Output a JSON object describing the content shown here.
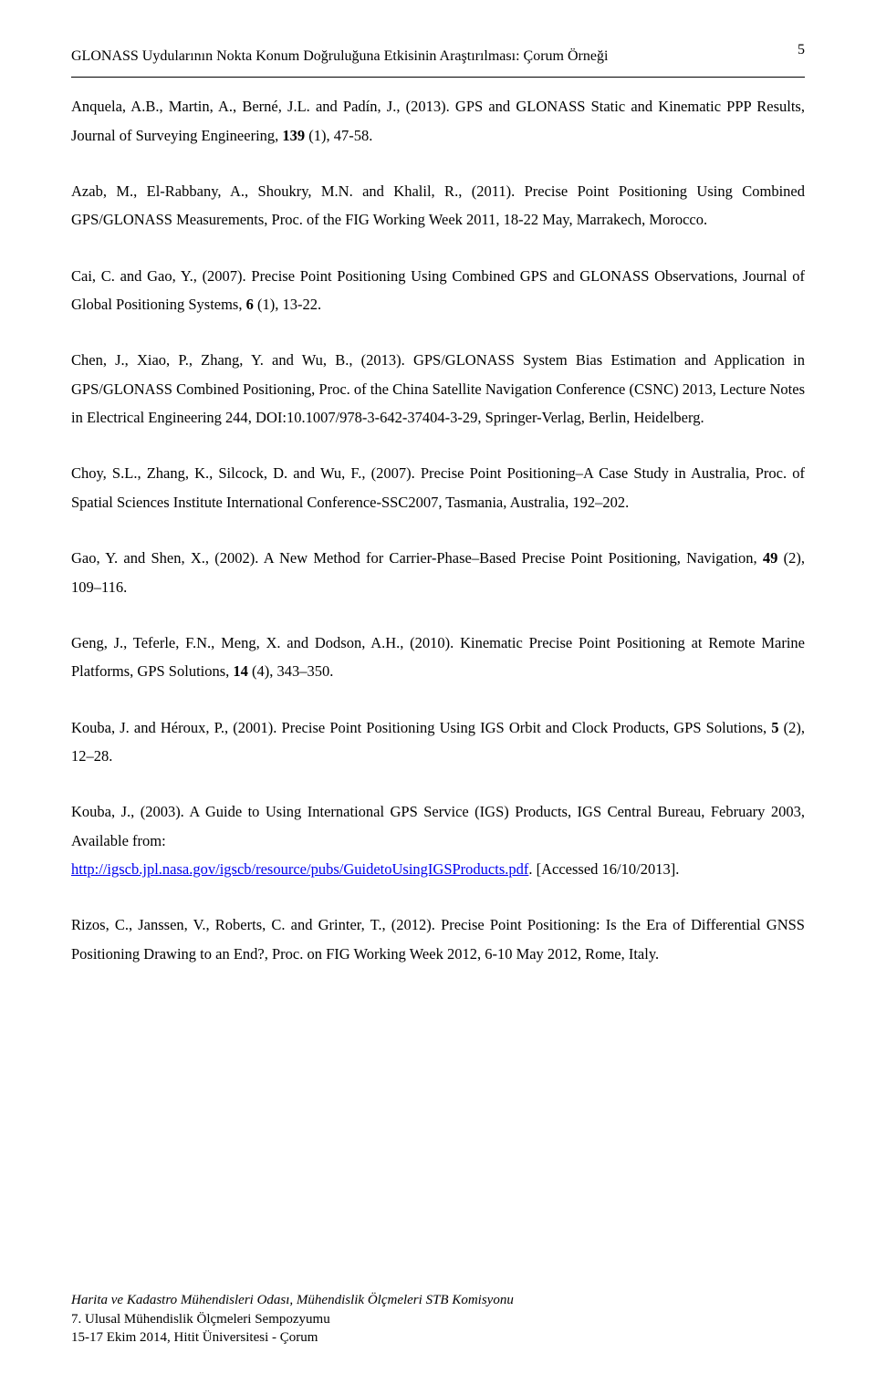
{
  "header": {
    "title": "GLONASS Uydularının Nokta Konum Doğruluğuna Etkisinin Araştırılması: Çorum Örneği",
    "page_number": "5"
  },
  "references": [
    {
      "authors": "Anquela, A.B., Martin, A., Berné, J.L. and Padín, J., (2013). ",
      "body": "GPS and GLONASS Static and Kinematic PPP Results, Journal of Surveying Engineering, ",
      "bold": "139",
      "tail": " (1), 47-58."
    },
    {
      "authors": "Azab, M., El-Rabbany, A., Shoukry, M.N. and Khalil, R., (2011). ",
      "body": "Precise Point Positioning Using Combined GPS/GLONASS Measurements, Proc. of the FIG Working Week 2011, 18-22 May, Marrakech, Morocco.",
      "bold": "",
      "tail": ""
    },
    {
      "authors": "Cai, C. and Gao, Y., (2007). ",
      "body": "Precise Point Positioning Using Combined GPS and GLONASS Observations, Journal of Global Positioning Systems, ",
      "bold": "6",
      "tail": " (1), 13-22."
    },
    {
      "authors": "Chen, J., Xiao, P., Zhang, Y. and Wu, B., (2013). ",
      "body": "GPS/GLONASS System Bias Estimation and Application in GPS/GLONASS Combined Positioning, Proc. of the China Satellite Navigation Conference (CSNC) 2013, Lecture Notes in Electrical Engineering 244, DOI:10.1007/978-3-642-37404-3-29, Springer-Verlag, Berlin, Heidelberg.",
      "bold": "",
      "tail": ""
    },
    {
      "authors": "Choy, S.L., Zhang, K., Silcock, D. and Wu, F., (2007). ",
      "body": "Precise Point Positioning–A Case Study in Australia, Proc. of Spatial Sciences Institute International Conference-SSC2007, Tasmania, Australia, 192–202.",
      "bold": "",
      "tail": ""
    },
    {
      "authors": "Gao, Y. and Shen, X., (2002). ",
      "body": "A New Method for Carrier-Phase–Based Precise Point Positioning, Navigation, ",
      "bold": "49",
      "tail": " (2), 109–116."
    },
    {
      "authors": "Geng, J., Teferle, F.N., Meng, X. and Dodson, A.H., (2010). ",
      "body": "Kinematic Precise Point Positioning at Remote Marine Platforms, GPS Solutions, ",
      "bold": "14",
      "tail": " (4), 343–350."
    },
    {
      "authors": "Kouba, J. and Héroux, P., (2001). ",
      "body": "Precise Point Positioning Using IGS Orbit and Clock Products, GPS Solutions, ",
      "bold": "5",
      "tail": " (2), 12–28."
    },
    {
      "authors": "Kouba, J., (2003). ",
      "body_pre_link": "A Guide to Using International GPS Service (IGS) Products, IGS Central Bureau, February 2003, Available from: ",
      "link_text": "http://igscb.jpl.nasa.gov/igscb/resource/pubs/GuidetoUsingIGSProducts.pdf",
      "body_post_link": ". [Accessed 16/10/2013].",
      "bold": "",
      "tail": ""
    },
    {
      "authors": "Rizos, C., Janssen, V., Roberts, C. and Grinter, T., (2012). ",
      "body": "Precise Point Positioning: Is the Era of Differential GNSS Positioning Drawing to an End?, Proc. on FIG Working Week 2012, 6-10 May 2012, Rome, Italy.",
      "bold": "",
      "tail": ""
    }
  ],
  "footer": {
    "line1": "Harita ve Kadastro Mühendisleri Odası, Mühendislik Ölçmeleri STB Komisyonu",
    "line2": "7. Ulusal Mühendislik Ölçmeleri Sempozyumu",
    "line3": "15-17 Ekim 2014, Hitit Üniversitesi - Çorum"
  }
}
